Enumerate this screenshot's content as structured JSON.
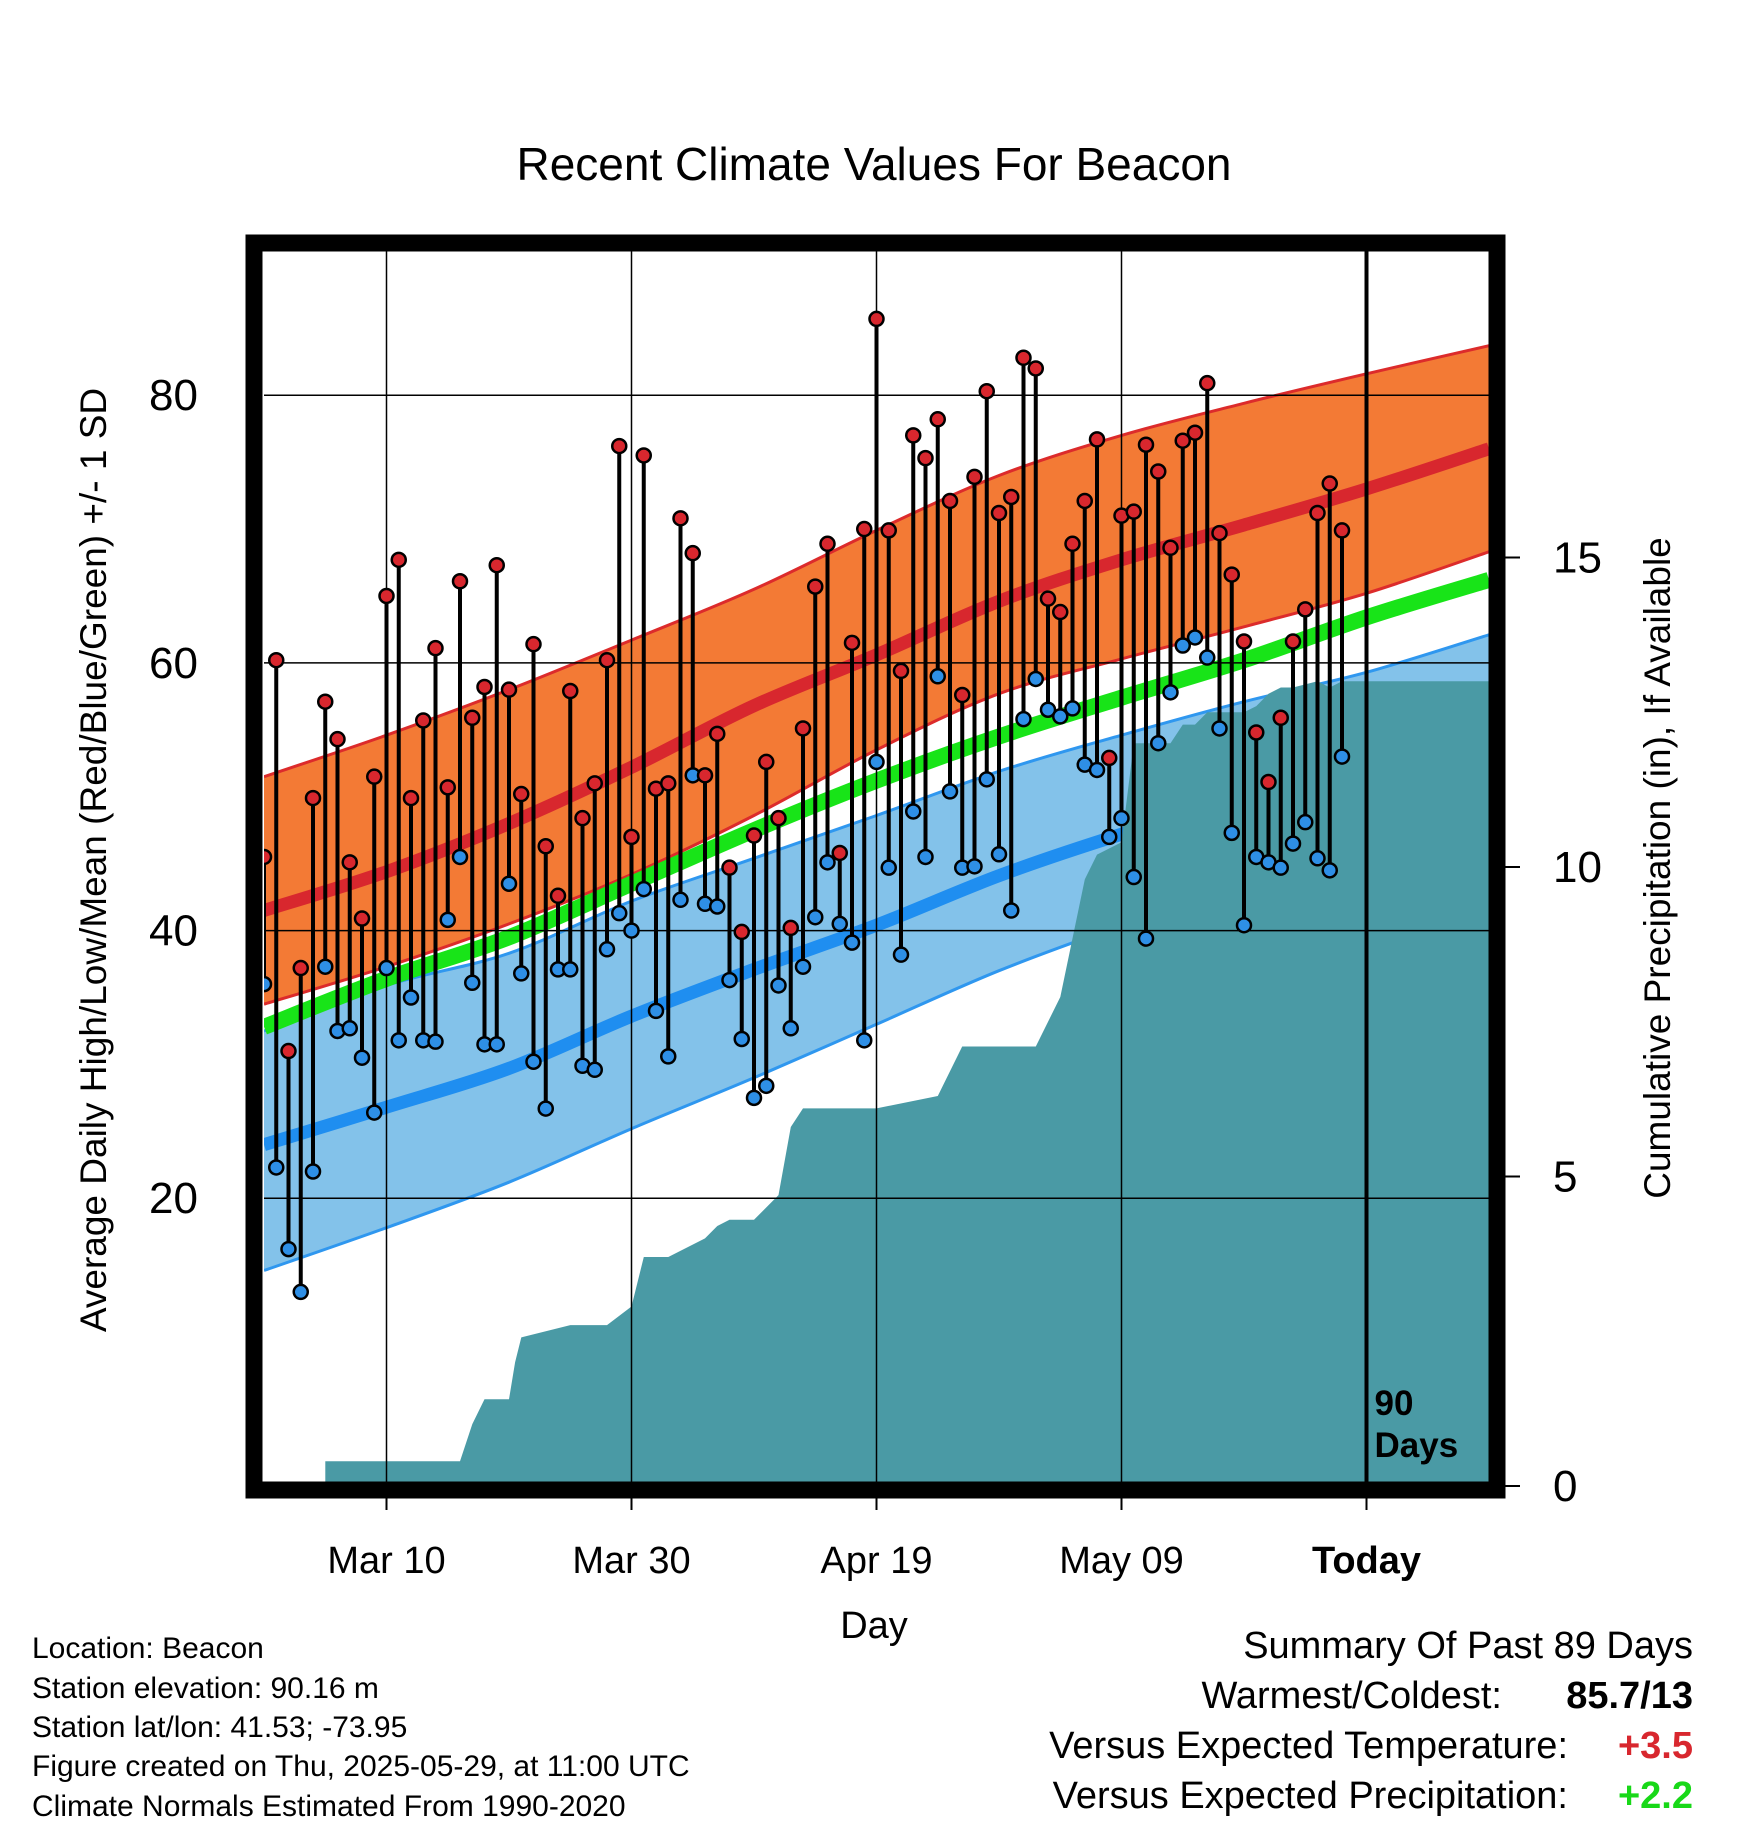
{
  "chart_data": {
    "type": "line",
    "title": "Recent Climate Values For Beacon",
    "xlabel": "Day",
    "ylabel": "Average Daily High/Low/Mean (Red/Blue/Green) +/- 1 SD",
    "y2label": "Cumulative Precipitation (in), If Available",
    "ylim": [
      -1.5,
      91
    ],
    "y2lim": [
      0,
      20
    ],
    "xlim": [
      0,
      100
    ],
    "grid": true,
    "x_ticks": [
      {
        "day": 10,
        "label": "Mar 10"
      },
      {
        "day": 30,
        "label": "Mar 30"
      },
      {
        "day": 50,
        "label": "Apr 19"
      },
      {
        "day": 70,
        "label": "May 09"
      },
      {
        "day": 90,
        "label": "Today"
      }
    ],
    "y_ticks": [
      20,
      40,
      60,
      80
    ],
    "y2_ticks": [
      0,
      5,
      10,
      15
    ],
    "today_marker": {
      "day": 90,
      "label_line1": "90",
      "label_line2": "Days"
    },
    "normals": {
      "days": [
        0,
        10,
        20,
        30,
        40,
        50,
        60,
        70,
        80,
        90,
        100
      ],
      "high_mean": [
        41.5,
        44.4,
        48.0,
        52.2,
        56.8,
        60.6,
        64.6,
        67.7,
        70.3,
        73.0,
        76.0
      ],
      "high_sd_upper": [
        51.5,
        54.6,
        58.0,
        61.7,
        65.5,
        69.9,
        74.0,
        77.0,
        79.4,
        81.6,
        83.7
      ],
      "high_sd_lower": [
        34.5,
        37.3,
        40.5,
        44.2,
        48.6,
        53.5,
        57.7,
        60.3,
        62.7,
        65.2,
        68.3
      ],
      "mean": [
        32.8,
        36.4,
        39.5,
        43.5,
        47.5,
        51.2,
        54.5,
        57.4,
        60.2,
        63.4,
        66.2
      ],
      "low_mean": [
        24.0,
        26.8,
        29.7,
        33.6,
        37.1,
        40.4,
        44.1,
        47.2,
        49.9,
        52.7,
        55.7
      ],
      "low_sd_upper": [
        32.5,
        35.9,
        38.3,
        42.2,
        45.4,
        48.6,
        51.9,
        54.6,
        57.1,
        59.3,
        62.1
      ],
      "low_sd_lower": [
        14.6,
        17.8,
        21.2,
        25.2,
        29.0,
        33.0,
        37.0,
        40.4,
        43.5,
        46.5,
        49.8
      ]
    },
    "observations": [
      {
        "day": 0,
        "high": 45.5,
        "low": 36.0
      },
      {
        "day": 1,
        "high": 60.2,
        "low": 22.3
      },
      {
        "day": 2,
        "high": 31.0,
        "low": 16.2
      },
      {
        "day": 3,
        "high": 37.2,
        "low": 13.0
      },
      {
        "day": 4,
        "high": 49.9,
        "low": 22.0
      },
      {
        "day": 5,
        "high": 57.1,
        "low": 37.3
      },
      {
        "day": 6,
        "high": 54.3,
        "low": 32.5
      },
      {
        "day": 7,
        "high": 45.1,
        "low": 32.7
      },
      {
        "day": 8,
        "high": 40.9,
        "low": 30.5
      },
      {
        "day": 9,
        "high": 51.5,
        "low": 26.4
      },
      {
        "day": 10,
        "high": 65.0,
        "low": 37.2
      },
      {
        "day": 11,
        "high": 67.7,
        "low": 31.8
      },
      {
        "day": 12,
        "high": 49.9,
        "low": 35.0
      },
      {
        "day": 13,
        "high": 55.7,
        "low": 31.8
      },
      {
        "day": 14,
        "high": 61.1,
        "low": 31.7
      },
      {
        "day": 15,
        "high": 50.7,
        "low": 40.8
      },
      {
        "day": 16,
        "high": 66.1,
        "low": 45.5
      },
      {
        "day": 17,
        "high": 55.9,
        "low": 36.1
      },
      {
        "day": 18,
        "high": 58.2,
        "low": 31.5
      },
      {
        "day": 19,
        "high": 67.3,
        "low": 31.5
      },
      {
        "day": 20,
        "high": 58.0,
        "low": 43.5
      },
      {
        "day": 21,
        "high": 50.2,
        "low": 36.8
      },
      {
        "day": 22,
        "high": 61.4,
        "low": 30.2
      },
      {
        "day": 23,
        "high": 46.3,
        "low": 26.7
      },
      {
        "day": 24,
        "high": 42.6,
        "low": 37.1
      },
      {
        "day": 25,
        "high": 57.9,
        "low": 37.1
      },
      {
        "day": 26,
        "high": 48.4,
        "low": 29.9
      },
      {
        "day": 27,
        "high": 51.0,
        "low": 29.6
      },
      {
        "day": 28,
        "high": 60.2,
        "low": 38.6
      },
      {
        "day": 29,
        "high": 76.2,
        "low": 41.3
      },
      {
        "day": 30,
        "high": 47.0,
        "low": 40.0
      },
      {
        "day": 31,
        "high": 75.5,
        "low": 43.1
      },
      {
        "day": 32,
        "high": 50.6,
        "low": 34.0
      },
      {
        "day": 33,
        "high": 51.0,
        "low": 30.6
      },
      {
        "day": 34,
        "high": 70.8,
        "low": 42.3
      },
      {
        "day": 35,
        "high": 68.2,
        "low": 51.6
      },
      {
        "day": 36,
        "high": 51.6,
        "low": 42.0
      },
      {
        "day": 37,
        "high": 54.7,
        "low": 41.8
      },
      {
        "day": 38,
        "high": 44.7,
        "low": 36.3
      },
      {
        "day": 39,
        "high": 39.9,
        "low": 31.9
      },
      {
        "day": 40,
        "high": 47.1,
        "low": 27.5
      },
      {
        "day": 41,
        "high": 52.6,
        "low": 28.4
      },
      {
        "day": 42,
        "high": 48.4,
        "low": 35.9
      },
      {
        "day": 43,
        "high": 40.2,
        "low": 32.7
      },
      {
        "day": 44,
        "high": 55.1,
        "low": 37.3
      },
      {
        "day": 45,
        "high": 65.7,
        "low": 41.0
      },
      {
        "day": 46,
        "high": 68.9,
        "low": 45.1
      },
      {
        "day": 47,
        "high": 45.8,
        "low": 40.5
      },
      {
        "day": 48,
        "high": 61.5,
        "low": 39.1
      },
      {
        "day": 49,
        "high": 70.0,
        "low": 31.8
      },
      {
        "day": 50,
        "high": 85.7,
        "low": 52.6
      },
      {
        "day": 51,
        "high": 69.9,
        "low": 44.7
      },
      {
        "day": 52,
        "high": 59.4,
        "low": 38.2
      },
      {
        "day": 53,
        "high": 77.0,
        "low": 48.9
      },
      {
        "day": 54,
        "high": 75.3,
        "low": 45.5
      },
      {
        "day": 55,
        "high": 78.2,
        "low": 59.0
      },
      {
        "day": 56,
        "high": 72.1,
        "low": 50.4
      },
      {
        "day": 57,
        "high": 57.6,
        "low": 44.7
      },
      {
        "day": 58,
        "high": 73.9,
        "low": 44.8
      },
      {
        "day": 59,
        "high": 80.3,
        "low": 51.3
      },
      {
        "day": 60,
        "high": 71.2,
        "low": 45.7
      },
      {
        "day": 61,
        "high": 72.4,
        "low": 41.5
      },
      {
        "day": 62,
        "high": 82.8,
        "low": 55.8
      },
      {
        "day": 63,
        "high": 82.0,
        "low": 58.8
      },
      {
        "day": 64,
        "high": 64.8,
        "low": 56.5
      },
      {
        "day": 65,
        "high": 63.8,
        "low": 56.0
      },
      {
        "day": 66,
        "high": 68.9,
        "low": 56.6
      },
      {
        "day": 67,
        "high": 72.1,
        "low": 52.4
      },
      {
        "day": 68,
        "high": 76.7,
        "low": 52.0
      },
      {
        "day": 69,
        "high": 52.9,
        "low": 47.0
      },
      {
        "day": 70,
        "high": 71.0,
        "low": 48.4
      },
      {
        "day": 71,
        "high": 71.3,
        "low": 44.0
      },
      {
        "day": 72,
        "high": 76.3,
        "low": 39.4
      },
      {
        "day": 73,
        "high": 74.3,
        "low": 54.0
      },
      {
        "day": 74,
        "high": 68.6,
        "low": 57.8
      },
      {
        "day": 75,
        "high": 76.6,
        "low": 61.3
      },
      {
        "day": 76,
        "high": 77.2,
        "low": 61.9
      },
      {
        "day": 77,
        "high": 80.9,
        "low": 60.4
      },
      {
        "day": 78,
        "high": 69.7,
        "low": 55.1
      },
      {
        "day": 79,
        "high": 66.6,
        "low": 47.3
      },
      {
        "day": 80,
        "high": 61.6,
        "low": 40.4
      },
      {
        "day": 81,
        "high": 54.8,
        "low": 45.5
      },
      {
        "day": 82,
        "high": 51.1,
        "low": 45.1
      },
      {
        "day": 83,
        "high": 55.9,
        "low": 44.7
      },
      {
        "day": 84,
        "high": 61.6,
        "low": 46.5
      },
      {
        "day": 85,
        "high": 64.0,
        "low": 48.1
      },
      {
        "day": 86,
        "high": 71.2,
        "low": 45.4
      },
      {
        "day": 87,
        "high": 73.4,
        "low": 44.5
      },
      {
        "day": 88,
        "high": 69.9,
        "low": 53.0
      }
    ],
    "cumulative_precip": {
      "days": [
        0,
        5,
        5,
        16,
        17,
        18,
        20,
        20.5,
        21,
        25,
        28,
        30,
        31,
        33,
        36,
        37,
        38,
        40,
        42,
        43,
        44,
        50,
        55,
        57,
        63,
        65,
        67,
        68,
        70,
        71,
        74,
        75,
        76,
        77,
        78,
        79,
        80,
        81,
        82,
        83,
        84,
        86,
        87,
        88,
        89,
        100
      ],
      "values": [
        0,
        0,
        0.4,
        0.4,
        1.0,
        1.4,
        1.4,
        2.0,
        2.4,
        2.6,
        2.6,
        2.9,
        3.7,
        3.7,
        4.0,
        4.2,
        4.3,
        4.3,
        4.7,
        5.8,
        6.1,
        6.1,
        6.3,
        7.1,
        7.1,
        7.9,
        9.8,
        10.2,
        10.4,
        12.0,
        12.0,
        12.3,
        12.3,
        12.5,
        12.5,
        12.5,
        12.5,
        12.6,
        12.8,
        12.9,
        12.9,
        13.0,
        12.9,
        13.0,
        13.0,
        13.0
      ]
    },
    "colors": {
      "high_band": "#f37a35",
      "high_band_edge": "#dc2b2b",
      "high_line": "#d8272e",
      "low_band": "#83c2ea",
      "low_band_edge": "#2f97ef",
      "low_line": "#1f8ef0",
      "mean_line": "#18e418",
      "precip_fill": "#4a9aa5",
      "high_dot": "#d8272e",
      "low_dot": "#2e8fe6"
    }
  },
  "footer": {
    "location": "Location: Beacon",
    "elevation": "Station elevation: 90.16 m",
    "latlon": "Station lat/lon: 41.53; -73.95",
    "created": "Figure created on Thu, 2025-05-29, at 11:00 UTC",
    "normals": "Climate Normals Estimated From 1990-2020"
  },
  "summary": {
    "heading": "Summary Of Past 89 Days",
    "warmest_label": "Warmest/Coldest:",
    "warmest_value": "85.7/13",
    "temp_label": "Versus Expected Temperature:",
    "temp_value": "+3.5",
    "temp_color": "#d8272e",
    "precip_label": "Versus Expected Precipitation:",
    "precip_value": "+2.2",
    "precip_color": "#18d818"
  }
}
